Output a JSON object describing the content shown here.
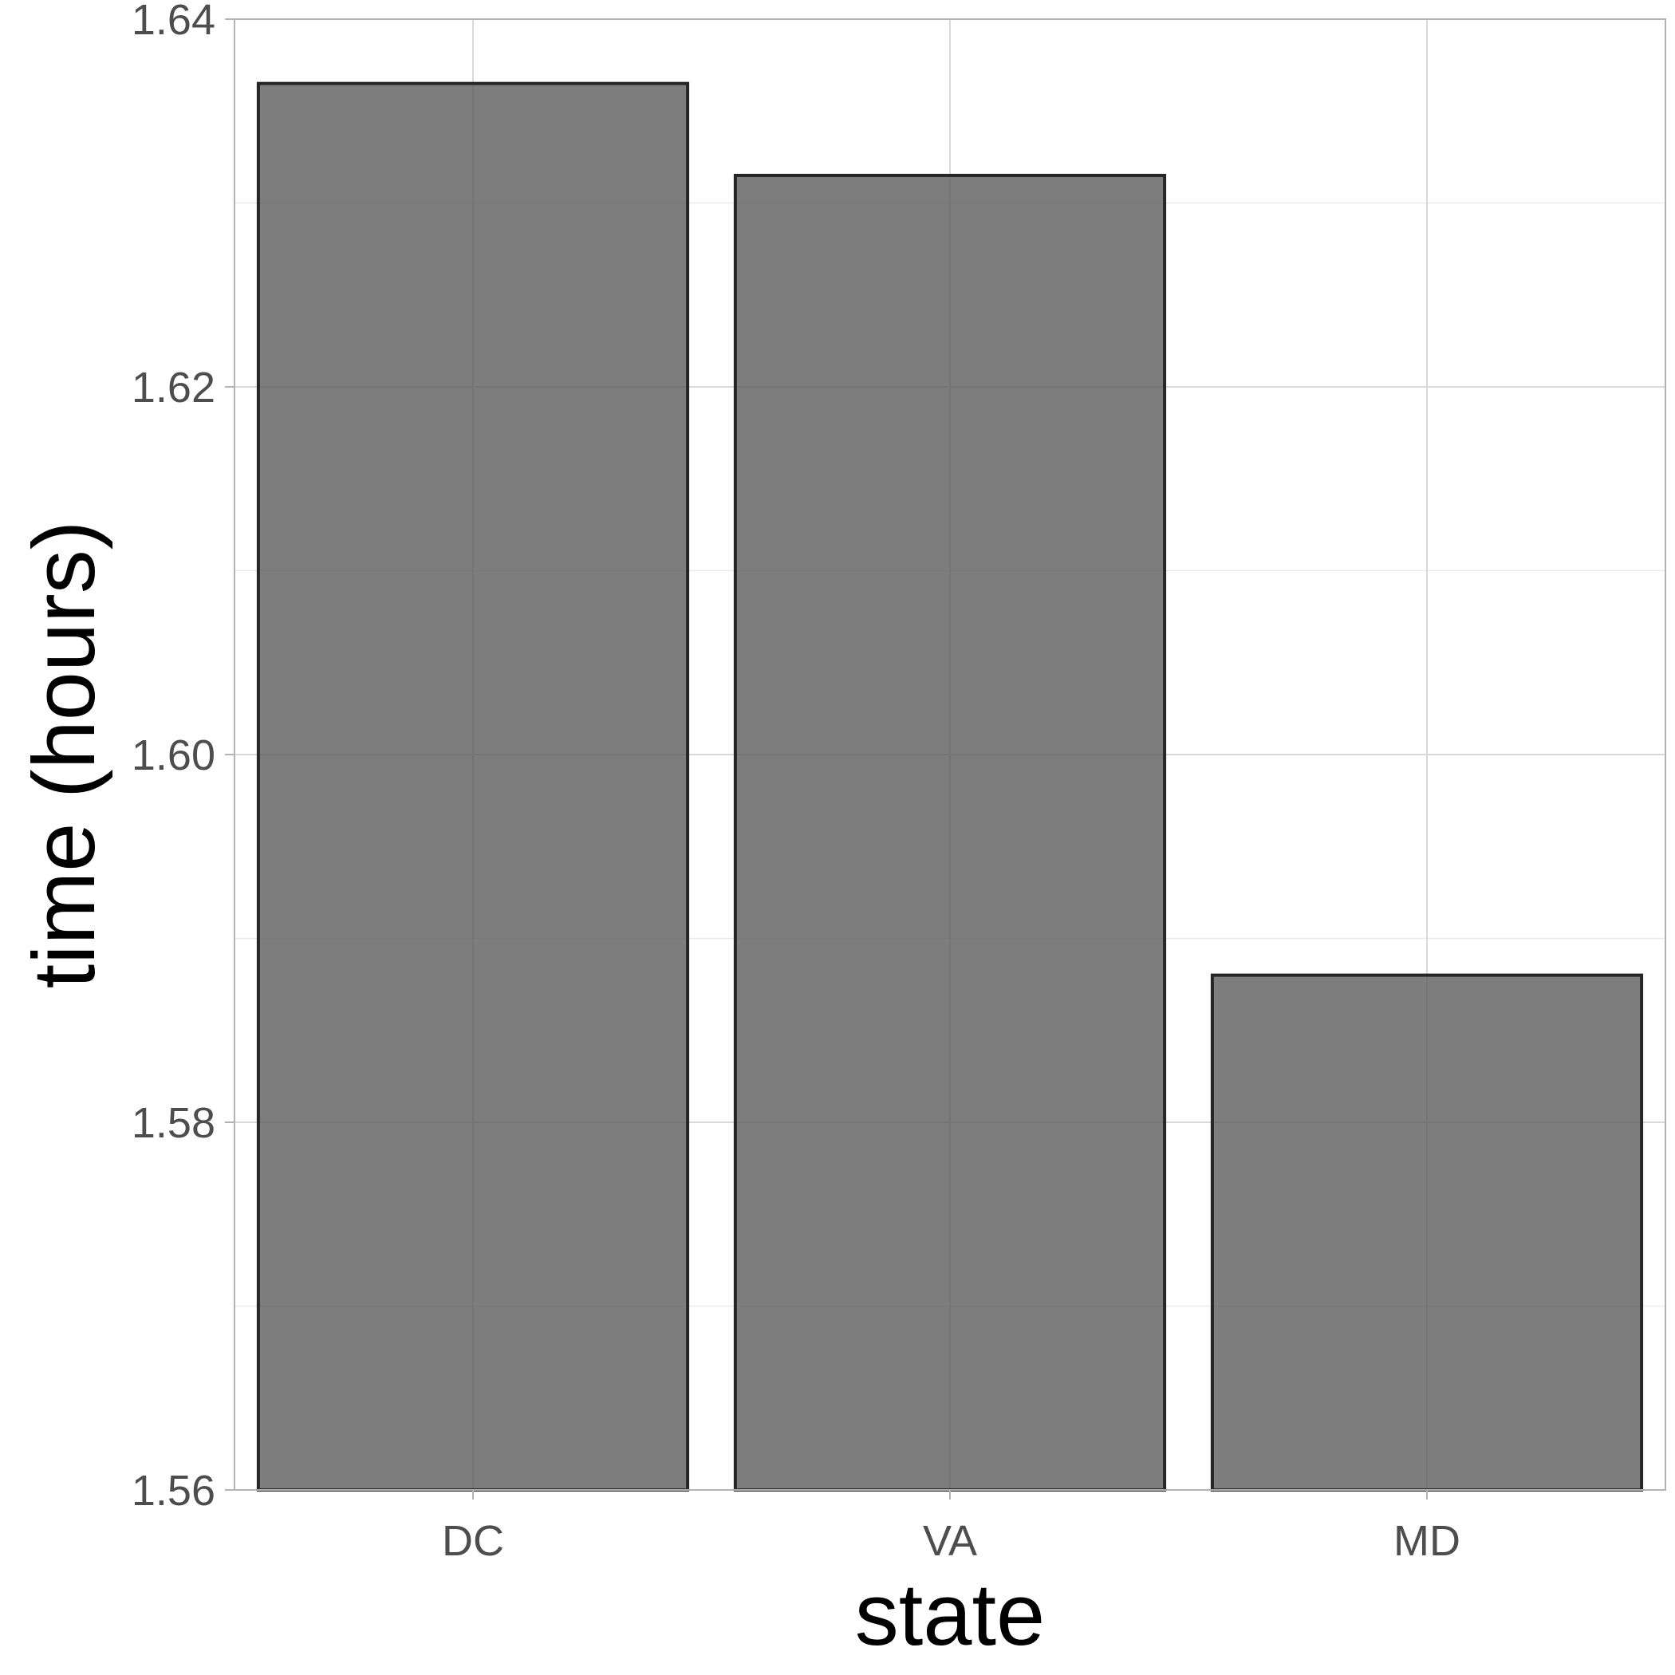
{
  "chart_data": {
    "type": "bar",
    "categories": [
      "DC",
      "VA",
      "MD"
    ],
    "values": [
      1.6365,
      1.6315,
      1.588
    ],
    "xlabel": "state",
    "ylabel": "time (hours)",
    "ylim": [
      1.56,
      1.64
    ],
    "yticks": [
      "1.56",
      "1.58",
      "1.60",
      "1.62",
      "1.64"
    ],
    "ytick_values": [
      1.56,
      1.58,
      1.6,
      1.62,
      1.64
    ],
    "grid": true,
    "colors": {
      "bar_fill": "#595959",
      "bar_stroke": "#262626",
      "grid": "#d9d9d9"
    }
  }
}
